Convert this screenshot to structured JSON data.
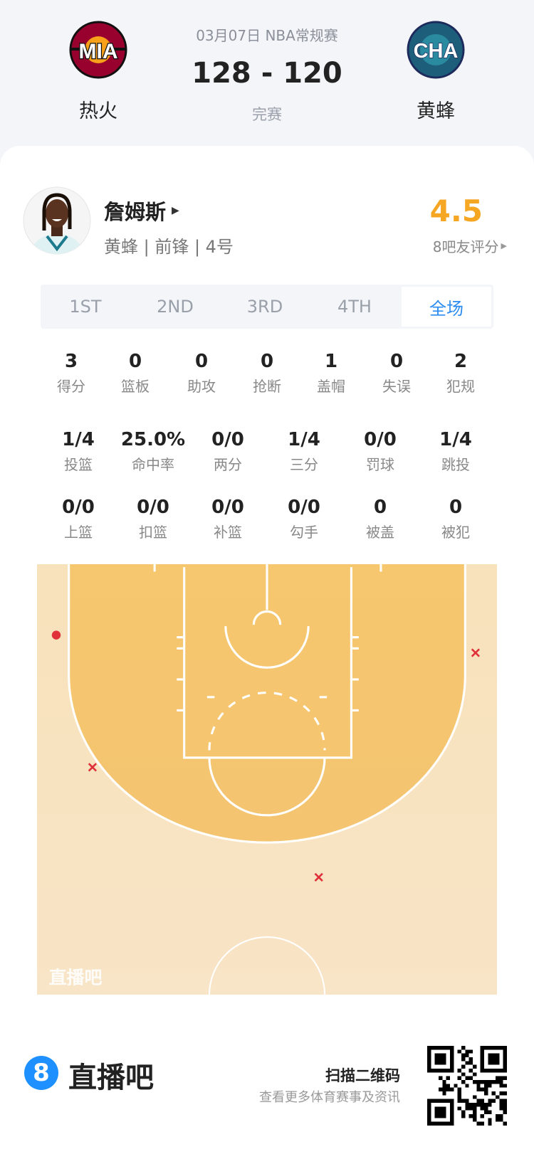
{
  "header": {
    "date_league": "03月07日 NBA常规赛",
    "score": "128 - 120",
    "status": "完赛",
    "home": {
      "abbr": "MIA",
      "name": "热火",
      "color": "#98002e"
    },
    "away": {
      "abbr": "CHA",
      "name": "黄蜂",
      "color": "#1d7a8c"
    }
  },
  "player": {
    "name": "詹姆斯",
    "info": "黄蜂 | 前锋 | 4号",
    "rating": "4.5",
    "rating_label": "8吧友评分",
    "rating_color": "#f5a623"
  },
  "tabs": [
    {
      "label": "1ST"
    },
    {
      "label": "2ND"
    },
    {
      "label": "3RD"
    },
    {
      "label": "4TH"
    },
    {
      "label": "全场",
      "active": true
    }
  ],
  "stats_row1": [
    {
      "v": "3",
      "l": "得分"
    },
    {
      "v": "0",
      "l": "篮板"
    },
    {
      "v": "0",
      "l": "助攻"
    },
    {
      "v": "0",
      "l": "抢断"
    },
    {
      "v": "1",
      "l": "盖帽"
    },
    {
      "v": "0",
      "l": "失误"
    },
    {
      "v": "2",
      "l": "犯规"
    }
  ],
  "stats_row2": [
    {
      "v": "1/4",
      "l": "投篮"
    },
    {
      "v": "25.0%",
      "l": "命中率"
    },
    {
      "v": "0/0",
      "l": "两分"
    },
    {
      "v": "1/4",
      "l": "三分"
    },
    {
      "v": "0/0",
      "l": "罚球"
    },
    {
      "v": "1/4",
      "l": "跳投"
    }
  ],
  "stats_row3": [
    {
      "v": "0/0",
      "l": "上篮"
    },
    {
      "v": "0/0",
      "l": "扣篮"
    },
    {
      "v": "0/0",
      "l": "补篮"
    },
    {
      "v": "0/0",
      "l": "勾手"
    },
    {
      "v": "0",
      "l": "被盖"
    },
    {
      "v": "0",
      "l": "被犯"
    }
  ],
  "shot_chart": {
    "watermark": "直播吧",
    "shots": [
      {
        "result": "made",
        "zone": "left corner three"
      },
      {
        "result": "missed",
        "zone": "left wing three"
      },
      {
        "result": "missed",
        "zone": "right corner three"
      },
      {
        "result": "missed",
        "zone": "top of key three"
      }
    ],
    "made_color": "#e0313b",
    "miss_color": "#e0313b"
  },
  "footer": {
    "brand": "直播吧",
    "brand_icon": "8",
    "qr_title": "扫描二维码",
    "qr_sub": "查看更多体育赛事及资讯",
    "brand_color": "#1e90ff"
  }
}
